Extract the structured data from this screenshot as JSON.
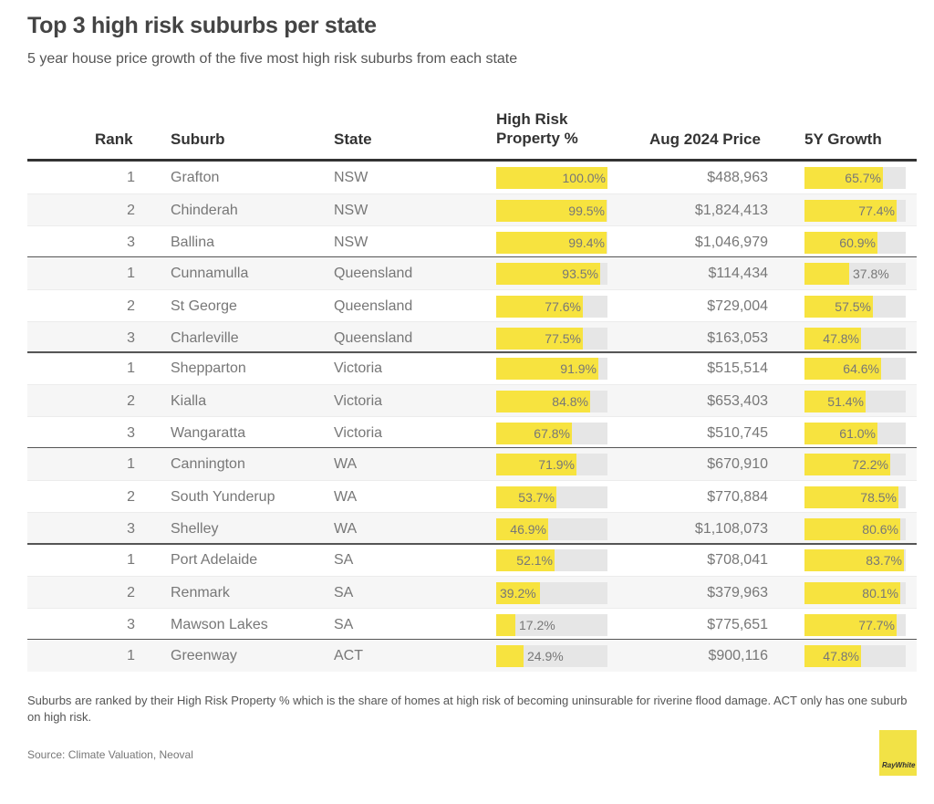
{
  "header": {
    "title": "Top 3 high risk suburbs per state",
    "subtitle": "5 year house price growth of the five most high risk suburbs from each state"
  },
  "columns": {
    "rank": "Rank",
    "suburb": "Suburb",
    "state": "State",
    "risk_line1": "High Risk",
    "risk_line2": "Property %",
    "price": "Aug 2024 Price",
    "growth": "5Y Growth"
  },
  "colors": {
    "bar_fill": "#f7e33f",
    "bar_track": "#e6e6e6",
    "row_alt": "#f6f6f6",
    "rule": "#333333"
  },
  "chart_data": {
    "type": "table",
    "title": "Top 3 high risk suburbs per state",
    "subtitle": "5 year house price growth of the five most high risk suburbs from each state",
    "columns": [
      "Rank",
      "Suburb",
      "State",
      "High Risk Property %",
      "Aug 2024 Price",
      "5Y Growth"
    ],
    "bar_scales": {
      "high_risk_max": 100,
      "growth_max": 85
    },
    "rows": [
      {
        "rank": "1",
        "suburb": "Grafton",
        "state": "NSW",
        "risk": 100.0,
        "risk_label": "100.0%",
        "price": "$488,963",
        "growth": 65.7,
        "growth_label": "65.7%"
      },
      {
        "rank": "2",
        "suburb": "Chinderah",
        "state": "NSW",
        "risk": 99.5,
        "risk_label": "99.5%",
        "price": "$1,824,413",
        "growth": 77.4,
        "growth_label": "77.4%"
      },
      {
        "rank": "3",
        "suburb": "Ballina",
        "state": "NSW",
        "risk": 99.4,
        "risk_label": "99.4%",
        "price": "$1,046,979",
        "growth": 60.9,
        "growth_label": "60.9%"
      },
      {
        "rank": "1",
        "suburb": "Cunnamulla",
        "state": "Queensland",
        "risk": 93.5,
        "risk_label": "93.5%",
        "price": "$114,434",
        "growth": 37.8,
        "growth_label": "37.8%"
      },
      {
        "rank": "2",
        "suburb": "St George",
        "state": "Queensland",
        "risk": 77.6,
        "risk_label": "77.6%",
        "price": "$729,004",
        "growth": 57.5,
        "growth_label": "57.5%"
      },
      {
        "rank": "3",
        "suburb": "Charleville",
        "state": "Queensland",
        "risk": 77.5,
        "risk_label": "77.5%",
        "price": "$163,053",
        "growth": 47.8,
        "growth_label": "47.8%"
      },
      {
        "rank": "1",
        "suburb": "Shepparton",
        "state": "Victoria",
        "risk": 91.9,
        "risk_label": "91.9%",
        "price": "$515,514",
        "growth": 64.6,
        "growth_label": "64.6%"
      },
      {
        "rank": "2",
        "suburb": "Kialla",
        "state": "Victoria",
        "risk": 84.8,
        "risk_label": "84.8%",
        "price": "$653,403",
        "growth": 51.4,
        "growth_label": "51.4%"
      },
      {
        "rank": "3",
        "suburb": "Wangaratta",
        "state": "Victoria",
        "risk": 67.8,
        "risk_label": "67.8%",
        "price": "$510,745",
        "growth": 61.0,
        "growth_label": "61.0%"
      },
      {
        "rank": "1",
        "suburb": "Cannington",
        "state": "WA",
        "risk": 71.9,
        "risk_label": "71.9%",
        "price": "$670,910",
        "growth": 72.2,
        "growth_label": "72.2%"
      },
      {
        "rank": "2",
        "suburb": "South Yunderup",
        "state": "WA",
        "risk": 53.7,
        "risk_label": "53.7%",
        "price": "$770,884",
        "growth": 78.5,
        "growth_label": "78.5%"
      },
      {
        "rank": "3",
        "suburb": "Shelley",
        "state": "WA",
        "risk": 46.9,
        "risk_label": "46.9%",
        "price": "$1,108,073",
        "growth": 80.6,
        "growth_label": "80.6%"
      },
      {
        "rank": "1",
        "suburb": "Port Adelaide",
        "state": "SA",
        "risk": 52.1,
        "risk_label": "52.1%",
        "price": "$708,041",
        "growth": 83.7,
        "growth_label": "83.7%"
      },
      {
        "rank": "2",
        "suburb": "Renmark",
        "state": "SA",
        "risk": 39.2,
        "risk_label": "39.2%",
        "price": "$379,963",
        "growth": 80.1,
        "growth_label": "80.1%"
      },
      {
        "rank": "3",
        "suburb": "Mawson Lakes",
        "state": "SA",
        "risk": 17.2,
        "risk_label": "17.2%",
        "price": "$775,651",
        "growth": 77.7,
        "growth_label": "77.7%"
      },
      {
        "rank": "1",
        "suburb": "Greenway",
        "state": "ACT",
        "risk": 24.9,
        "risk_label": "24.9%",
        "price": "$900,116",
        "growth": 47.8,
        "growth_label": "47.8%"
      }
    ]
  },
  "footer": {
    "note": "Suburbs are ranked by their High Risk Property % which is the share of homes at high risk of becoming uninsurable for riverine flood damage. ACT only has one suburb on high risk.",
    "source": "Source: Climate Valuation, Neoval",
    "logo_text": "RayWhite"
  }
}
